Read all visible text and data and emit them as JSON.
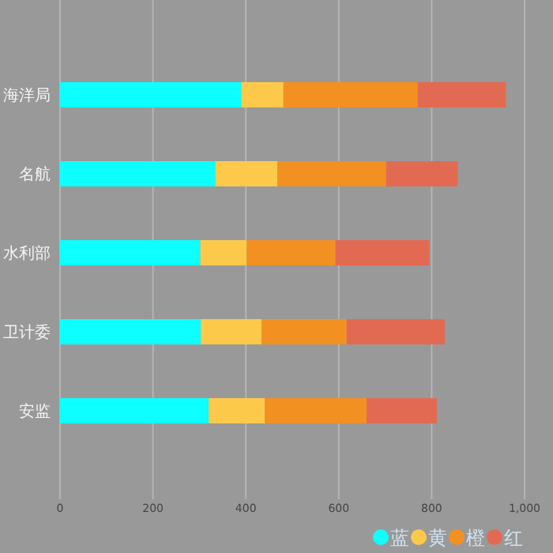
{
  "chart_data": {
    "type": "bar",
    "orientation": "horizontal",
    "stacked": true,
    "categories": [
      "海洋局",
      "名航",
      "水利部",
      "卫计委",
      "安监"
    ],
    "series": [
      {
        "name": "蓝",
        "color": "#0dffff",
        "values": [
          390,
          334,
          302,
          303,
          320
        ]
      },
      {
        "name": "黄",
        "color": "#fdc94a",
        "values": [
          91,
          134,
          100,
          131,
          121
        ]
      },
      {
        "name": "橙",
        "color": "#f39022",
        "values": [
          289,
          234,
          191,
          183,
          219
        ]
      },
      {
        "name": "红",
        "color": "#e36a52",
        "values": [
          190,
          154,
          202,
          211,
          151
        ]
      }
    ],
    "xlim": [
      0,
      1000
    ],
    "xticks": [
      0,
      200,
      400,
      600,
      800,
      {
        "value": 1000,
        "label": "1,000"
      }
    ],
    "grid": "x",
    "legend": "bottom right"
  }
}
